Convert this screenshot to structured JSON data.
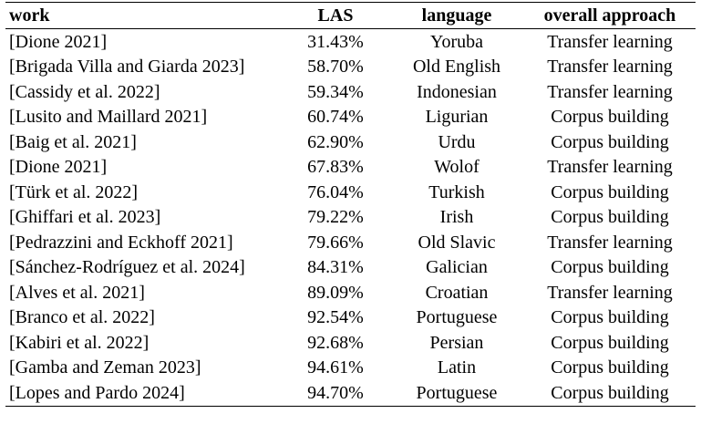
{
  "table": {
    "header": [
      "work",
      "LAS",
      "language",
      "overall approach"
    ],
    "rows": [
      [
        "[Dione 2021]",
        "31.43%",
        "Yoruba",
        "Transfer learning"
      ],
      [
        "[Brigada Villa and Giarda 2023]",
        "58.70%",
        "Old English",
        "Transfer learning"
      ],
      [
        "[Cassidy et al. 2022]",
        "59.34%",
        "Indonesian",
        "Transfer learning"
      ],
      [
        "[Lusito and Maillard 2021]",
        "60.74%",
        "Ligurian",
        "Corpus building"
      ],
      [
        "[Baig et al. 2021]",
        "62.90%",
        "Urdu",
        "Corpus building"
      ],
      [
        "[Dione 2021]",
        "67.83%",
        "Wolof",
        "Transfer learning"
      ],
      [
        "[Türk et al. 2022]",
        "76.04%",
        "Turkish",
        "Corpus building"
      ],
      [
        "[Ghiffari et al. 2023]",
        "79.22%",
        "Irish",
        "Corpus building"
      ],
      [
        "[Pedrazzini and Eckhoff 2021]",
        "79.66%",
        "Old Slavic",
        "Transfer learning"
      ],
      [
        "[Sánchez-Rodríguez et al. 2024]",
        "84.31%",
        "Galician",
        "Corpus building"
      ],
      [
        "[Alves et al. 2021]",
        "89.09%",
        "Croatian",
        "Transfer learning"
      ],
      [
        "[Branco et al. 2022]",
        "92.54%",
        "Portuguese",
        "Corpus building"
      ],
      [
        "[Kabiri et al. 2022]",
        "92.68%",
        "Persian",
        "Corpus building"
      ],
      [
        "[Gamba and Zeman 2023]",
        "94.61%",
        "Latin",
        "Corpus building"
      ],
      [
        "[Lopes and Pardo 2024]",
        "94.70%",
        "Portuguese",
        "Corpus building"
      ]
    ]
  }
}
